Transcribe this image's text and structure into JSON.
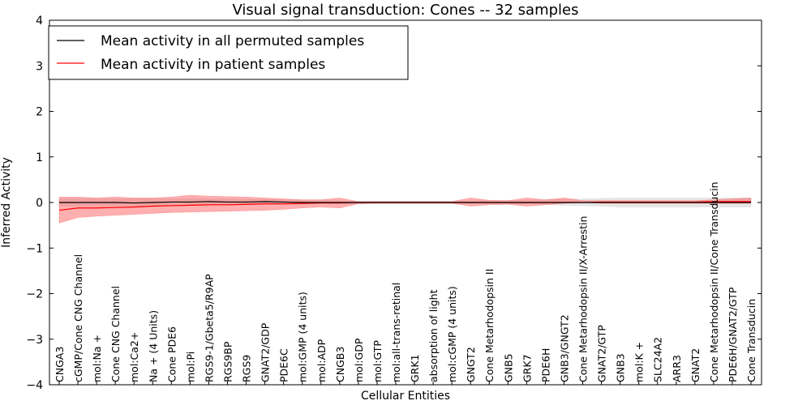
{
  "chart_data": {
    "type": "line",
    "title": "Visual signal transduction: Cones -- 32 samples",
    "xlabel": "Cellular Entities",
    "ylabel": "Inferred Activity",
    "ylim": [
      -4,
      4
    ],
    "yticks": [
      "−4",
      "−3",
      "−2",
      "−1",
      "0",
      "1",
      "2",
      "3",
      "4"
    ],
    "grid": false,
    "legend_position": "top-left",
    "categories": [
      "CNGA3",
      "cGMP/Cone CNG Channel",
      "mol:Na +",
      "Cone CNG Channel",
      "mol:Ca2+",
      "Na + (4 Units)",
      "Cone PDE6",
      "mol:Pi",
      "RGS9-1/Gbeta5/R9AP",
      "RGS9BP",
      "RGS9",
      "GNAT2/GDP",
      "PDE6C",
      "mol:GMP (4 units)",
      "mol:ADP",
      "CNGB3",
      "mol:GDP",
      "mol:GTP",
      "mol:all-trans-retinal",
      "GRK1",
      "absorption of light",
      "mol:cGMP (4 units)",
      "GNGT2",
      "Cone Metarhodopsin II",
      "GNB5",
      "GRK7",
      "PDE6H",
      "GNB3/GNGT2",
      "Cone Metarhodopsin II/X-Arrestin",
      "GNAT2/GTP",
      "GNB3",
      "mol:K +",
      "SLC24A2",
      "ARR3",
      "GNAT2",
      "Cone Metarhodopsin II/Cone Transducin",
      "PDE6H/GNAT2/GTP",
      "Cone Transducin"
    ],
    "series": [
      {
        "name": "Mean activity in all permuted samples",
        "color": "#000000",
        "band_color": "#c8c8c8",
        "values": [
          0.0,
          0.0,
          0.0,
          0.0,
          -0.01,
          0.0,
          0.01,
          0.01,
          0.02,
          0.01,
          0.01,
          0.02,
          0.01,
          0.0,
          0.0,
          0.0,
          0.0,
          0.0,
          0.0,
          0.0,
          0.0,
          0.0,
          0.0,
          0.0,
          0.0,
          0.0,
          0.0,
          0.0,
          0.0,
          0.0,
          0.0,
          0.0,
          0.0,
          0.0,
          0.0,
          0.0,
          0.0,
          0.0
        ],
        "lower": [
          -0.08,
          -0.08,
          -0.08,
          -0.08,
          -0.08,
          -0.07,
          -0.06,
          -0.05,
          -0.05,
          -0.05,
          -0.05,
          -0.04,
          -0.04,
          -0.04,
          -0.03,
          -0.03,
          -0.02,
          -0.02,
          -0.02,
          -0.02,
          -0.02,
          -0.02,
          -0.02,
          -0.02,
          -0.03,
          -0.03,
          -0.04,
          -0.06,
          -0.07,
          -0.08,
          -0.1,
          -0.1,
          -0.1,
          -0.1,
          -0.1,
          -0.1,
          -0.1,
          -0.1
        ],
        "upper": [
          0.08,
          0.08,
          0.08,
          0.08,
          0.08,
          0.08,
          0.08,
          0.08,
          0.08,
          0.08,
          0.07,
          0.07,
          0.06,
          0.05,
          0.05,
          0.04,
          0.03,
          0.03,
          0.03,
          0.03,
          0.03,
          0.03,
          0.04,
          0.04,
          0.05,
          0.05,
          0.06,
          0.07,
          0.08,
          0.09,
          0.1,
          0.1,
          0.1,
          0.1,
          0.1,
          0.1,
          0.1,
          0.1
        ]
      },
      {
        "name": "Mean activity in patient samples",
        "color": "#ff0000",
        "band_color": "#ff4d4d",
        "values": [
          -0.17,
          -0.12,
          -0.12,
          -0.11,
          -0.1,
          -0.08,
          -0.07,
          -0.06,
          -0.05,
          -0.05,
          -0.04,
          -0.03,
          -0.03,
          -0.02,
          -0.01,
          -0.01,
          0.0,
          0.0,
          0.0,
          0.0,
          0.0,
          0.0,
          0.0,
          0.0,
          0.0,
          0.0,
          0.0,
          0.0,
          0.0,
          0.01,
          0.01,
          0.01,
          0.01,
          0.01,
          0.01,
          0.02,
          0.02,
          0.02
        ],
        "lower": [
          -0.45,
          -0.33,
          -0.3,
          -0.28,
          -0.26,
          -0.24,
          -0.22,
          -0.21,
          -0.2,
          -0.19,
          -0.18,
          -0.17,
          -0.15,
          -0.12,
          -0.1,
          -0.12,
          -0.03,
          -0.02,
          -0.02,
          -0.02,
          -0.02,
          -0.02,
          -0.08,
          -0.05,
          -0.04,
          -0.08,
          -0.05,
          -0.02,
          0.0,
          -0.02,
          -0.02,
          -0.02,
          -0.02,
          -0.02,
          -0.02,
          -0.02,
          -0.02,
          -0.02
        ],
        "upper": [
          0.12,
          0.12,
          0.1,
          0.12,
          0.1,
          0.1,
          0.12,
          0.16,
          0.14,
          0.13,
          0.12,
          0.1,
          0.08,
          0.06,
          0.06,
          0.1,
          0.02,
          0.02,
          0.02,
          0.02,
          0.02,
          0.02,
          0.1,
          0.05,
          0.04,
          0.1,
          0.06,
          0.1,
          0.04,
          0.04,
          0.04,
          0.04,
          0.04,
          0.04,
          0.04,
          0.06,
          0.08,
          0.1
        ]
      }
    ]
  }
}
